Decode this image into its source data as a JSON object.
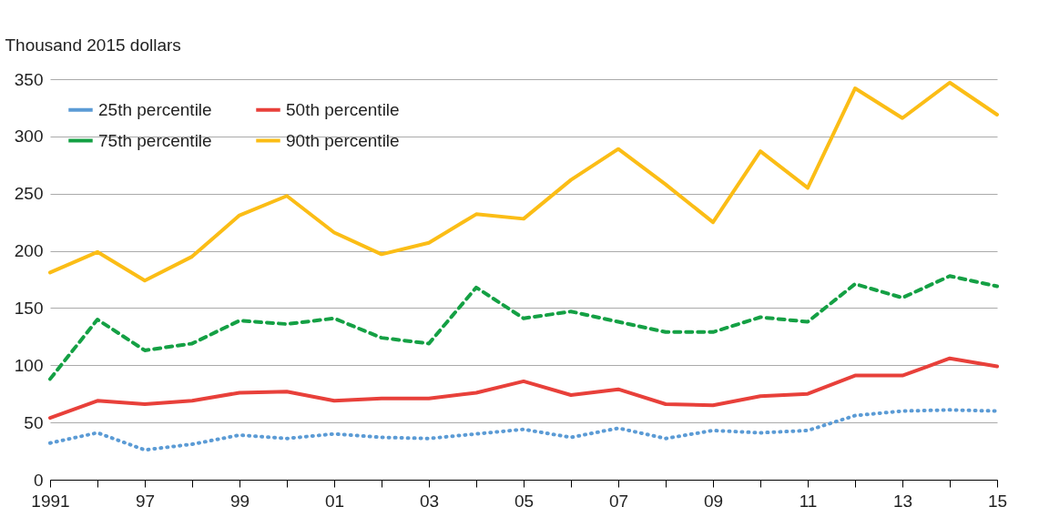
{
  "chart_data": {
    "type": "line",
    "ylabel": "Thousand 2015 dollars",
    "categories": [
      "1991",
      null,
      "97",
      null,
      "99",
      null,
      "01",
      null,
      "03",
      null,
      "05",
      null,
      "07",
      null,
      "09",
      null,
      "11",
      null,
      "13",
      null,
      "15"
    ],
    "series": [
      {
        "name": "25th percentile",
        "color": "#5b9bd5",
        "line_style": "dotted",
        "values": [
          32,
          41,
          26,
          31,
          39,
          36,
          40,
          37,
          36,
          40,
          44,
          37,
          45,
          36,
          43,
          41,
          43,
          56,
          60,
          61,
          60
        ]
      },
      {
        "name": "50th percentile",
        "color": "#e8403a",
        "line_style": "solid",
        "values": [
          54,
          69,
          66,
          69,
          76,
          77,
          69,
          71,
          71,
          76,
          86,
          74,
          79,
          66,
          65,
          73,
          75,
          91,
          91,
          106,
          99
        ]
      },
      {
        "name": "75th percentile",
        "color": "#14a044",
        "line_style": "dashed",
        "values": [
          88,
          140,
          113,
          119,
          139,
          136,
          141,
          124,
          119,
          168,
          141,
          147,
          138,
          129,
          129,
          142,
          138,
          171,
          159,
          178,
          169
        ]
      },
      {
        "name": "90th percentile",
        "color": "#fbbd16",
        "line_style": "solid",
        "values": [
          181,
          199,
          174,
          195,
          231,
          248,
          216,
          197,
          207,
          232,
          228,
          262,
          289,
          258,
          225,
          287,
          255,
          342,
          316,
          347,
          319
        ]
      }
    ],
    "ylim": [
      0,
      350
    ],
    "yticks": [
      0,
      50,
      100,
      150,
      200,
      250,
      300,
      350
    ],
    "grid": "y",
    "legend": "top left",
    "marker": "none"
  }
}
